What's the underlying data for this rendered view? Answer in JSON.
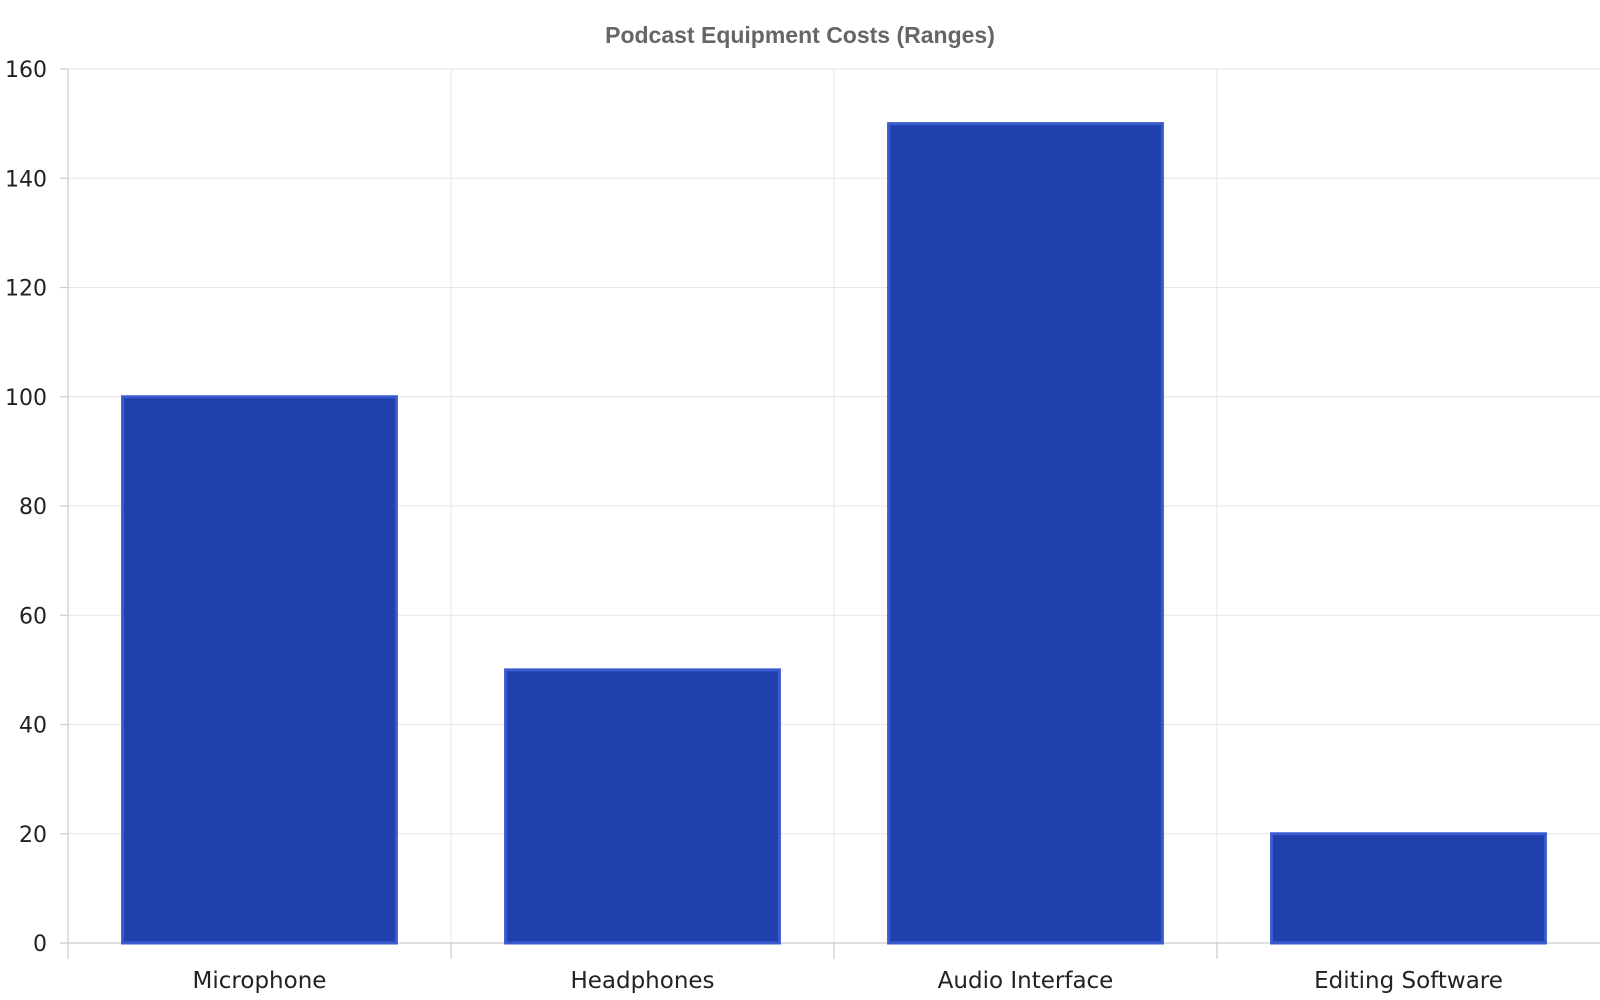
{
  "chart_data": {
    "type": "bar",
    "title": "Podcast Equipment Costs (Ranges)",
    "xlabel": "",
    "ylabel": "",
    "categories": [
      "Microphone",
      "Headphones",
      "Audio Interface",
      "Editing Software"
    ],
    "values": [
      100,
      50,
      150,
      20
    ],
    "ylim": [
      0,
      160
    ],
    "yticks": [
      0,
      20,
      40,
      60,
      80,
      100,
      120,
      140,
      160
    ],
    "grid": true,
    "legend": "none",
    "bar_color": "#1f40ad",
    "bar_edge_color": "#3a5bd0"
  }
}
